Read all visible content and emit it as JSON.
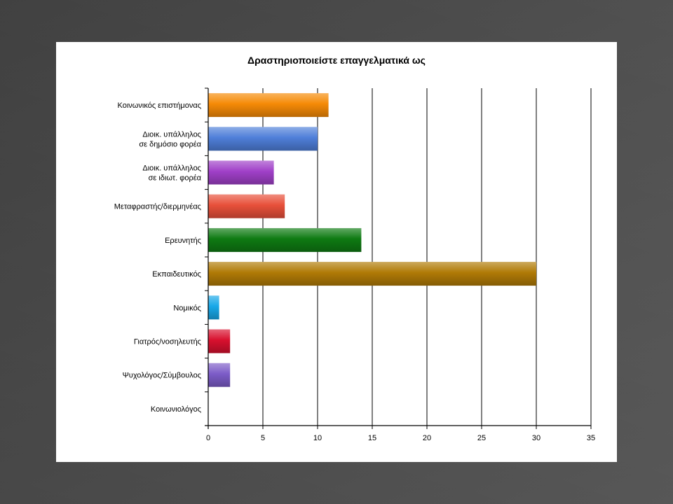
{
  "chart_data": {
    "type": "bar",
    "orientation": "horizontal",
    "title": "Δραστηριοποιείστε επαγγελματικά ως",
    "categories": [
      [
        "Κοινωνικός επιστήμονας"
      ],
      [
        "Διοικ. υπάλληλος",
        "σε δημόσιο  φορέα"
      ],
      [
        "Διοικ. υπάλληλος",
        "σε ιδιωτ. φορέα"
      ],
      [
        "Μεταφραστής/διερμηνέας"
      ],
      [
        "Ερευνητής"
      ],
      [
        "Εκπαιδευτικός"
      ],
      [
        "Νομικός"
      ],
      [
        "Γιατρός/νοσηλευτής"
      ],
      [
        "Ψυχολόγος/Σύμβουλος"
      ],
      [
        "Κοινωνιολόγος"
      ]
    ],
    "values": [
      11,
      10,
      6,
      7,
      14,
      30,
      1,
      2,
      2,
      0
    ],
    "colors": [
      "#f58a06",
      "#4f7fd9",
      "#a040c8",
      "#e8503a",
      "#0e7a12",
      "#b07a06",
      "#18a8e8",
      "#d8102e",
      "#7c5cc8",
      "#888888"
    ],
    "xlim": [
      0,
      35
    ],
    "xticks": [
      0,
      5,
      10,
      15,
      20,
      25,
      30,
      35
    ],
    "grid": true
  }
}
